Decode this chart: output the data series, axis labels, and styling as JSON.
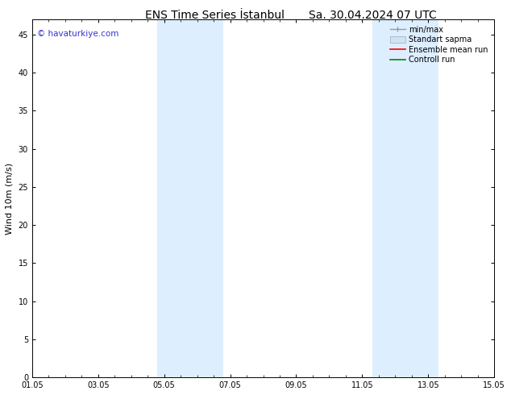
{
  "title": "ENS Time Series İstanbul",
  "subtitle": "Sa. 30.04.2024 07 UTC",
  "ylabel": "Wind 10m (m/s)",
  "watermark": "© havaturkiye.com",
  "watermark_color": "#3333cc",
  "ylim": [
    0,
    47
  ],
  "yticks": [
    0,
    5,
    10,
    15,
    20,
    25,
    30,
    35,
    40,
    45
  ],
  "xtick_labels": [
    "01.05",
    "03.05",
    "05.05",
    "07.05",
    "09.05",
    "11.05",
    "13.05",
    "15.05"
  ],
  "xtick_positions": [
    0,
    2,
    4,
    6,
    8,
    10,
    12,
    14
  ],
  "x_min": 0,
  "x_max": 14,
  "shaded_bands": [
    {
      "x_start": 3.8,
      "x_end": 5.8,
      "color": "#ddeeff"
    },
    {
      "x_start": 10.3,
      "x_end": 12.3,
      "color": "#ddeeff"
    }
  ],
  "background_color": "#ffffff",
  "legend_items": [
    {
      "label": "min/max",
      "color": "#aaaaaa"
    },
    {
      "label": "Standart sapma",
      "color": "#cce4f5"
    },
    {
      "label": "Ensemble mean run",
      "color": "#ff0000"
    },
    {
      "label": "Controll run",
      "color": "#008800"
    }
  ],
  "title_fontsize": 10,
  "tick_fontsize": 7,
  "ylabel_fontsize": 8,
  "watermark_fontsize": 7.5,
  "legend_fontsize": 7
}
